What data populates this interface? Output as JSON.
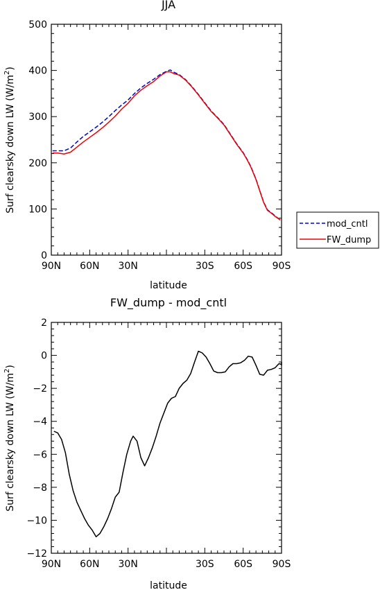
{
  "chart_data": [
    {
      "type": "line",
      "title": "JJA",
      "xlabel": "latitude",
      "ylabel": "Surf clearsky down LW (W/m",
      "ylabel_sup": "2",
      "ylabel_close": ")",
      "xlim": [
        90,
        -90
      ],
      "ylim": [
        0,
        500
      ],
      "x_ticks": [
        90,
        60,
        30,
        0,
        -30,
        -60,
        -90
      ],
      "x_tick_labels": [
        "90N",
        "60N",
        "30N",
        "",
        "30S",
        "60S",
        "90S"
      ],
      "y_ticks": [
        0,
        100,
        200,
        300,
        400,
        500
      ],
      "y_tick_labels": [
        "0",
        "100",
        "200",
        "300",
        "400",
        "500"
      ],
      "legend_position": "right",
      "series": [
        {
          "name": "mod_cntl",
          "style": "dashed",
          "color": "#0000cc",
          "points": [
            [
              89,
              226
            ],
            [
              85,
              226
            ],
            [
              80,
              226
            ],
            [
              75,
              232
            ],
            [
              70,
              245
            ],
            [
              65,
              257
            ],
            [
              60,
              267
            ],
            [
              55,
              277
            ],
            [
              50,
              288
            ],
            [
              45,
              300
            ],
            [
              40,
              313
            ],
            [
              35,
              325
            ],
            [
              30,
              336
            ],
            [
              25,
              350
            ],
            [
              20,
              362
            ],
            [
              15,
              372
            ],
            [
              10,
              381
            ],
            [
              5,
              391
            ],
            [
              0,
              398
            ],
            [
              -3,
              401
            ],
            [
              -6,
              396
            ],
            [
              -10,
              391
            ],
            [
              -15,
              380
            ],
            [
              -20,
              365
            ],
            [
              -25,
              348
            ],
            [
              -30,
              330
            ],
            [
              -35,
              312
            ],
            [
              -40,
              298
            ],
            [
              -45,
              283
            ],
            [
              -50,
              262
            ],
            [
              -55,
              241
            ],
            [
              -60,
              222
            ],
            [
              -63,
              208
            ],
            [
              -66,
              192
            ],
            [
              -70,
              165
            ],
            [
              -73,
              140
            ],
            [
              -76,
              115
            ],
            [
              -79,
              98
            ],
            [
              -82,
              92
            ],
            [
              -85,
              85
            ],
            [
              -89,
              76
            ]
          ]
        },
        {
          "name": "FW_dump",
          "style": "solid",
          "color": "#ee0000",
          "points": [
            [
              89,
              221
            ],
            [
              85,
              221
            ],
            [
              80,
              219
            ],
            [
              75,
              223
            ],
            [
              70,
              234
            ],
            [
              65,
              245
            ],
            [
              60,
              255
            ],
            [
              55,
              265
            ],
            [
              50,
              276
            ],
            [
              45,
              288
            ],
            [
              40,
              301
            ],
            [
              35,
              316
            ],
            [
              30,
              329
            ],
            [
              25,
              345
            ],
            [
              20,
              357
            ],
            [
              15,
              367
            ],
            [
              10,
              376
            ],
            [
              5,
              388
            ],
            [
              0,
              397
            ],
            [
              -3,
              397
            ],
            [
              -6,
              393
            ],
            [
              -10,
              390
            ],
            [
              -15,
              379
            ],
            [
              -20,
              364
            ],
            [
              -25,
              347
            ],
            [
              -30,
              329
            ],
            [
              -35,
              311
            ],
            [
              -40,
              297
            ],
            [
              -45,
              282
            ],
            [
              -50,
              261
            ],
            [
              -55,
              240
            ],
            [
              -60,
              221
            ],
            [
              -63,
              207
            ],
            [
              -66,
              191
            ],
            [
              -70,
              164
            ],
            [
              -73,
              139
            ],
            [
              -76,
              114
            ],
            [
              -79,
              97
            ],
            [
              -82,
              91
            ],
            [
              -85,
              84
            ],
            [
              -89,
              76
            ]
          ]
        }
      ]
    },
    {
      "type": "line",
      "title": "FW_dump - mod_cntl",
      "xlabel": "latitude",
      "ylabel": "Surf clearsky down LW (W/m",
      "ylabel_sup": "2",
      "ylabel_close": ")",
      "xlim": [
        90,
        -90
      ],
      "ylim": [
        -12,
        2
      ],
      "x_ticks": [
        90,
        60,
        30,
        0,
        -30,
        -60,
        -90
      ],
      "x_tick_labels": [
        "90N",
        "60N",
        "30N",
        "",
        "30S",
        "60S",
        "90S"
      ],
      "y_ticks": [
        -12,
        -10,
        -8,
        -6,
        -4,
        -2,
        0,
        2
      ],
      "y_tick_labels": [
        "−12",
        "−10",
        "−8",
        "−6",
        "−4",
        "−2",
        "0",
        "2"
      ],
      "series": [
        {
          "style": "solid",
          "color": "#000000",
          "points": [
            [
              88,
              -4.6
            ],
            [
              85,
              -4.7
            ],
            [
              82,
              -5.1
            ],
            [
              79,
              -5.9
            ],
            [
              76,
              -7.2
            ],
            [
              73,
              -8.2
            ],
            [
              70,
              -8.9
            ],
            [
              67,
              -9.4
            ],
            [
              64,
              -9.9
            ],
            [
              61,
              -10.3
            ],
            [
              58,
              -10.6
            ],
            [
              55,
              -11.0
            ],
            [
              52,
              -10.8
            ],
            [
              49,
              -10.4
            ],
            [
              46,
              -9.9
            ],
            [
              43,
              -9.3
            ],
            [
              40,
              -8.6
            ],
            [
              37,
              -8.3
            ],
            [
              34,
              -7.1
            ],
            [
              31,
              -6.0
            ],
            [
              28,
              -5.2
            ],
            [
              26,
              -4.9
            ],
            [
              23,
              -5.2
            ],
            [
              20,
              -6.2
            ],
            [
              17,
              -6.7
            ],
            [
              14,
              -6.2
            ],
            [
              11,
              -5.6
            ],
            [
              8,
              -4.9
            ],
            [
              5,
              -4.1
            ],
            [
              2,
              -3.5
            ],
            [
              -1,
              -2.9
            ],
            [
              -4,
              -2.6
            ],
            [
              -7,
              -2.5
            ],
            [
              -10,
              -2.0
            ],
            [
              -13,
              -1.7
            ],
            [
              -16,
              -1.5
            ],
            [
              -19,
              -1.1
            ],
            [
              -22,
              -0.4
            ],
            [
              -25,
              0.25
            ],
            [
              -28,
              0.15
            ],
            [
              -31,
              -0.1
            ],
            [
              -34,
              -0.5
            ],
            [
              -37,
              -0.95
            ],
            [
              -40,
              -1.05
            ],
            [
              -43,
              -1.05
            ],
            [
              -46,
              -1.0
            ],
            [
              -49,
              -0.7
            ],
            [
              -52,
              -0.5
            ],
            [
              -55,
              -0.5
            ],
            [
              -58,
              -0.45
            ],
            [
              -61,
              -0.3
            ],
            [
              -64,
              -0.05
            ],
            [
              -67,
              -0.1
            ],
            [
              -70,
              -0.6
            ],
            [
              -73,
              -1.15
            ],
            [
              -76,
              -1.2
            ],
            [
              -79,
              -0.9
            ],
            [
              -82,
              -0.85
            ],
            [
              -85,
              -0.75
            ],
            [
              -88,
              -0.5
            ],
            [
              -91,
              -0.55
            ],
            [
              -94,
              -0.6
            ],
            [
              -97,
              -0.4
            ]
          ]
        }
      ]
    }
  ]
}
